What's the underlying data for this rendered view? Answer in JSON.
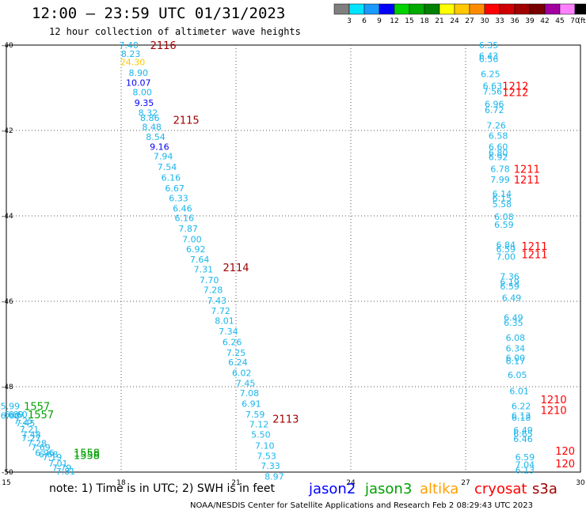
{
  "header": {
    "title": "12:00 – 23:59 UTC 01/31/2023",
    "subtitle": "12 hour collection of altimeter wave heights"
  },
  "colorbar": {
    "labels": [
      "3",
      "6",
      "9",
      "12",
      "15",
      "18",
      "21",
      "24",
      "27",
      "30",
      "33",
      "36",
      "39",
      "42",
      "45",
      "70"
    ],
    "unit": "(ft)",
    "colors": [
      "#7f7f7f",
      "#00e5ff",
      "#1a9aff",
      "#0000ff",
      "#00d200",
      "#00aa00",
      "#008000",
      "#ffff00",
      "#ffc800",
      "#ff8c00",
      "#ff0000",
      "#d00000",
      "#a00000",
      "#780000",
      "#a000a0",
      "#ff80ff",
      "#000000"
    ]
  },
  "note": "note:  1) Time is in UTC; 2) SWH is in feet",
  "legend": [
    {
      "label": "jason2",
      "color": "#0000ff"
    },
    {
      "label": "jason3",
      "color": "#00a000"
    },
    {
      "label": "altika",
      "color": "#ffa000"
    },
    {
      "label": "cryosat",
      "color": "#ff0000"
    },
    {
      "label": "s3a",
      "color": "#a00000"
    }
  ],
  "footer": "NOAA/NESDIS Center for Satellite Applications and Research    Feb  2 08:29:43 UTC 2023",
  "chart_data": {
    "type": "scatter",
    "xlim": [
      15,
      30
    ],
    "ylim": [
      -50,
      -40
    ],
    "x_ticks": [
      "15",
      "18",
      "21",
      "24",
      "27",
      "30"
    ],
    "x_tick_values": [
      15,
      18,
      21,
      24,
      27,
      30
    ],
    "y_ticks": [
      "-40",
      "-42",
      "-44",
      "-46",
      "-48",
      "-50"
    ],
    "y_tick_values": [
      -40,
      -42,
      -44,
      -46,
      -48,
      -50
    ],
    "grid": true,
    "track_labels": [
      {
        "text": "2116",
        "x": 19.1,
        "y": -40.0,
        "color": "#a00000"
      },
      {
        "text": "2115",
        "x": 19.7,
        "y": -41.75,
        "color": "#a00000"
      },
      {
        "text": "2114",
        "x": 21.0,
        "y": -45.2,
        "color": "#a00000"
      },
      {
        "text": "2113",
        "x": 22.3,
        "y": -48.75,
        "color": "#a00000"
      },
      {
        "text": "1557",
        "x": 15.8,
        "y": -48.45,
        "color": "#00a000"
      },
      {
        "text": "1557",
        "x": 15.9,
        "y": -48.65,
        "color": "#00a000"
      },
      {
        "text": "1558",
        "x": 17.1,
        "y": -49.55,
        "color": "#00a000"
      },
      {
        "text": "1558",
        "x": 17.1,
        "y": -49.6,
        "color": "#00a000"
      },
      {
        "text": "1212",
        "x": 28.3,
        "y": -40.95,
        "color": "#ff0000"
      },
      {
        "text": "1212",
        "x": 28.3,
        "y": -41.1,
        "color": "#ff0000"
      },
      {
        "text": "1211",
        "x": 28.6,
        "y": -42.9,
        "color": "#ff0000"
      },
      {
        "text": "1211",
        "x": 28.6,
        "y": -43.15,
        "color": "#ff0000"
      },
      {
        "text": "1211",
        "x": 28.8,
        "y": -44.7,
        "color": "#ff0000"
      },
      {
        "text": "1211",
        "x": 28.8,
        "y": -44.9,
        "color": "#ff0000"
      },
      {
        "text": "1210",
        "x": 29.3,
        "y": -48.3,
        "color": "#ff0000"
      },
      {
        "text": "1210",
        "x": 29.3,
        "y": -48.55,
        "color": "#ff0000"
      },
      {
        "text": "120",
        "x": 29.6,
        "y": -49.5,
        "color": "#ff0000"
      },
      {
        "text": "120",
        "x": 29.6,
        "y": -49.8,
        "color": "#ff0000"
      }
    ],
    "points": [
      {
        "text": "7.40",
        "x": 18.2,
        "y": -40.0,
        "color": "#19b5ec"
      },
      {
        "text": "8.23",
        "x": 18.25,
        "y": -40.2,
        "color": "#19b5ec"
      },
      {
        "text": "24.30",
        "x": 18.3,
        "y": -40.4,
        "color": "#ffc800"
      },
      {
        "text": "8.90",
        "x": 18.45,
        "y": -40.65,
        "color": "#19b5ec"
      },
      {
        "text": "10.07",
        "x": 18.45,
        "y": -40.88,
        "color": "#0000ff"
      },
      {
        "text": "8.00",
        "x": 18.55,
        "y": -41.1,
        "color": "#19b5ec"
      },
      {
        "text": "9.35",
        "x": 18.6,
        "y": -41.35,
        "color": "#0000ff"
      },
      {
        "text": "8.32",
        "x": 18.7,
        "y": -41.58,
        "color": "#19b5ec"
      },
      {
        "text": "8.86",
        "x": 18.75,
        "y": -41.7,
        "color": "#19b5ec"
      },
      {
        "text": "8.48",
        "x": 18.8,
        "y": -41.92,
        "color": "#19b5ec"
      },
      {
        "text": "8.54",
        "x": 18.9,
        "y": -42.15,
        "color": "#19b5ec"
      },
      {
        "text": "9.16",
        "x": 19.0,
        "y": -42.38,
        "color": "#0000ff"
      },
      {
        "text": "7.94",
        "x": 19.1,
        "y": -42.6,
        "color": "#19b5ec"
      },
      {
        "text": "7.54",
        "x": 19.2,
        "y": -42.85,
        "color": "#19b5ec"
      },
      {
        "text": "6.16",
        "x": 19.3,
        "y": -43.1,
        "color": "#19b5ec"
      },
      {
        "text": "6.67",
        "x": 19.4,
        "y": -43.35,
        "color": "#19b5ec"
      },
      {
        "text": "6.33",
        "x": 19.5,
        "y": -43.58,
        "color": "#19b5ec"
      },
      {
        "text": "6.46",
        "x": 19.6,
        "y": -43.82,
        "color": "#19b5ec"
      },
      {
        "text": "6.16",
        "x": 19.65,
        "y": -44.05,
        "color": "#19b5ec"
      },
      {
        "text": "7.87",
        "x": 19.75,
        "y": -44.3,
        "color": "#19b5ec"
      },
      {
        "text": "7.00",
        "x": 19.85,
        "y": -44.55,
        "color": "#19b5ec"
      },
      {
        "text": "6.92",
        "x": 19.95,
        "y": -44.78,
        "color": "#19b5ec"
      },
      {
        "text": "7.64",
        "x": 20.05,
        "y": -45.02,
        "color": "#19b5ec"
      },
      {
        "text": "7.31",
        "x": 20.15,
        "y": -45.25,
        "color": "#19b5ec"
      },
      {
        "text": "7.70",
        "x": 20.3,
        "y": -45.5,
        "color": "#19b5ec"
      },
      {
        "text": "7.28",
        "x": 20.4,
        "y": -45.73,
        "color": "#19b5ec"
      },
      {
        "text": "7.43",
        "x": 20.5,
        "y": -45.98,
        "color": "#19b5ec"
      },
      {
        "text": "7.72",
        "x": 20.6,
        "y": -46.22,
        "color": "#19b5ec"
      },
      {
        "text": "8.01",
        "x": 20.7,
        "y": -46.45,
        "color": "#19b5ec"
      },
      {
        "text": "7.34",
        "x": 20.8,
        "y": -46.7,
        "color": "#19b5ec"
      },
      {
        "text": "6.26",
        "x": 20.9,
        "y": -46.95,
        "color": "#19b5ec"
      },
      {
        "text": "7.25",
        "x": 21.0,
        "y": -47.2,
        "color": "#19b5ec"
      },
      {
        "text": "6.24",
        "x": 21.05,
        "y": -47.43,
        "color": "#19b5ec"
      },
      {
        "text": "6.02",
        "x": 21.15,
        "y": -47.68,
        "color": "#19b5ec"
      },
      {
        "text": "7.45",
        "x": 21.25,
        "y": -47.92,
        "color": "#19b5ec"
      },
      {
        "text": "7.08",
        "x": 21.35,
        "y": -48.15,
        "color": "#19b5ec"
      },
      {
        "text": "6.91",
        "x": 21.4,
        "y": -48.4,
        "color": "#19b5ec"
      },
      {
        "text": "7.59",
        "x": 21.5,
        "y": -48.65,
        "color": "#19b5ec"
      },
      {
        "text": "7.12",
        "x": 21.6,
        "y": -48.88,
        "color": "#19b5ec"
      },
      {
        "text": "5.50",
        "x": 21.65,
        "y": -49.12,
        "color": "#19b5ec"
      },
      {
        "text": "7.10",
        "x": 21.75,
        "y": -49.38,
        "color": "#19b5ec"
      },
      {
        "text": "7.53",
        "x": 21.8,
        "y": -49.62,
        "color": "#19b5ec"
      },
      {
        "text": "7.33",
        "x": 21.9,
        "y": -49.85,
        "color": "#19b5ec"
      },
      {
        "text": "8.97",
        "x": 22.0,
        "y": -50.1,
        "color": "#19b5ec"
      },
      {
        "text": "6.35",
        "x": 27.6,
        "y": -40.0,
        "color": "#19b5ec"
      },
      {
        "text": "6.43",
        "x": 27.6,
        "y": -40.25,
        "color": "#19b5ec"
      },
      {
        "text": "6.56",
        "x": 27.6,
        "y": -40.32,
        "color": "#19b5ec"
      },
      {
        "text": "6.25",
        "x": 27.65,
        "y": -40.68,
        "color": "#19b5ec"
      },
      {
        "text": "6.63",
        "x": 27.7,
        "y": -40.95,
        "color": "#19b5ec"
      },
      {
        "text": "7.56",
        "x": 27.7,
        "y": -41.08,
        "color": "#19b5ec"
      },
      {
        "text": "6.96",
        "x": 27.75,
        "y": -41.38,
        "color": "#19b5ec"
      },
      {
        "text": "6.72",
        "x": 27.75,
        "y": -41.52,
        "color": "#19b5ec"
      },
      {
        "text": "7.26",
        "x": 27.8,
        "y": -41.88,
        "color": "#19b5ec"
      },
      {
        "text": "6.58",
        "x": 27.85,
        "y": -42.12,
        "color": "#19b5ec"
      },
      {
        "text": "6.60",
        "x": 27.85,
        "y": -42.38,
        "color": "#19b5ec"
      },
      {
        "text": "6.80",
        "x": 27.85,
        "y": -42.52,
        "color": "#19b5ec"
      },
      {
        "text": "6.92",
        "x": 27.85,
        "y": -42.62,
        "color": "#19b5ec"
      },
      {
        "text": "6.78",
        "x": 27.9,
        "y": -42.9,
        "color": "#19b5ec"
      },
      {
        "text": "7.99",
        "x": 27.9,
        "y": -43.15,
        "color": "#19b5ec"
      },
      {
        "text": "6.14",
        "x": 27.95,
        "y": -43.48,
        "color": "#19b5ec"
      },
      {
        "text": "6.15",
        "x": 27.95,
        "y": -43.58,
        "color": "#19b5ec"
      },
      {
        "text": "5.58",
        "x": 27.95,
        "y": -43.72,
        "color": "#19b5ec"
      },
      {
        "text": "6.08",
        "x": 28.0,
        "y": -44.02,
        "color": "#19b5ec"
      },
      {
        "text": "6.59",
        "x": 28.0,
        "y": -44.2,
        "color": "#19b5ec"
      },
      {
        "text": "6.84",
        "x": 28.05,
        "y": -44.68,
        "color": "#19b5ec"
      },
      {
        "text": "6.59",
        "x": 28.05,
        "y": -44.78,
        "color": "#19b5ec"
      },
      {
        "text": "7.00",
        "x": 28.05,
        "y": -44.95,
        "color": "#19b5ec"
      },
      {
        "text": "7.36",
        "x": 28.15,
        "y": -45.42,
        "color": "#19b5ec"
      },
      {
        "text": "6.19",
        "x": 28.15,
        "y": -45.55,
        "color": "#19b5ec"
      },
      {
        "text": "6.59",
        "x": 28.15,
        "y": -45.65,
        "color": "#19b5ec"
      },
      {
        "text": "6.49",
        "x": 28.2,
        "y": -45.92,
        "color": "#19b5ec"
      },
      {
        "text": "6.49",
        "x": 28.25,
        "y": -46.38,
        "color": "#19b5ec"
      },
      {
        "text": "6.35",
        "x": 28.25,
        "y": -46.5,
        "color": "#19b5ec"
      },
      {
        "text": "6.08",
        "x": 28.3,
        "y": -46.85,
        "color": "#19b5ec"
      },
      {
        "text": "6.34",
        "x": 28.3,
        "y": -47.1,
        "color": "#19b5ec"
      },
      {
        "text": "6.00",
        "x": 28.3,
        "y": -47.32,
        "color": "#19b5ec"
      },
      {
        "text": "6.17",
        "x": 28.3,
        "y": -47.4,
        "color": "#19b5ec"
      },
      {
        "text": "6.05",
        "x": 28.35,
        "y": -47.72,
        "color": "#19b5ec"
      },
      {
        "text": "6.01",
        "x": 28.4,
        "y": -48.1,
        "color": "#19b5ec"
      },
      {
        "text": "6.22",
        "x": 28.45,
        "y": -48.45,
        "color": "#19b5ec"
      },
      {
        "text": "6.13",
        "x": 28.45,
        "y": -48.68,
        "color": "#19b5ec"
      },
      {
        "text": "6.18",
        "x": 28.45,
        "y": -48.72,
        "color": "#19b5ec"
      },
      {
        "text": "6.49",
        "x": 28.5,
        "y": -49.02,
        "color": "#19b5ec"
      },
      {
        "text": "6.65",
        "x": 28.5,
        "y": -49.1,
        "color": "#19b5ec"
      },
      {
        "text": "6.46",
        "x": 28.5,
        "y": -49.22,
        "color": "#19b5ec"
      },
      {
        "text": "6.59",
        "x": 28.55,
        "y": -49.65,
        "color": "#19b5ec"
      },
      {
        "text": "7.04",
        "x": 28.55,
        "y": -49.82,
        "color": "#19b5ec"
      },
      {
        "text": "6.13",
        "x": 28.55,
        "y": -49.95,
        "color": "#19b5ec"
      },
      {
        "text": "5.99",
        "x": 15.1,
        "y": -48.45,
        "color": "#19b5ec"
      },
      {
        "text": "6.69",
        "x": 15.2,
        "y": -48.65,
        "color": "#19b5ec"
      },
      {
        "text": "6.60",
        "x": 15.1,
        "y": -48.68,
        "color": "#19b5ec"
      },
      {
        "text": "6.60",
        "x": 15.3,
        "y": -48.65,
        "color": "#19b5ec"
      },
      {
        "text": "7.25",
        "x": 15.45,
        "y": -48.8,
        "color": "#19b5ec"
      },
      {
        "text": "7.45",
        "x": 15.5,
        "y": -48.85,
        "color": "#19b5ec"
      },
      {
        "text": "7.21",
        "x": 15.6,
        "y": -49.0,
        "color": "#19b5ec"
      },
      {
        "text": "7.48",
        "x": 15.65,
        "y": -49.12,
        "color": "#19b5ec"
      },
      {
        "text": "7.27",
        "x": 15.65,
        "y": -49.2,
        "color": "#19b5ec"
      },
      {
        "text": "7.28",
        "x": 15.8,
        "y": -49.32,
        "color": "#19b5ec"
      },
      {
        "text": "7.69",
        "x": 15.9,
        "y": -49.42,
        "color": "#19b5ec"
      },
      {
        "text": "6.96",
        "x": 16.0,
        "y": -49.55,
        "color": "#19b5ec"
      },
      {
        "text": "6.68",
        "x": 16.1,
        "y": -49.58,
        "color": "#19b5ec"
      },
      {
        "text": "7.19",
        "x": 16.2,
        "y": -49.65,
        "color": "#19b5ec"
      },
      {
        "text": "7.01",
        "x": 16.35,
        "y": -49.8,
        "color": "#19b5ec"
      },
      {
        "text": "7.79",
        "x": 16.45,
        "y": -49.9,
        "color": "#19b5ec"
      },
      {
        "text": "7.81",
        "x": 16.55,
        "y": -49.98,
        "color": "#19b5ec"
      }
    ]
  }
}
